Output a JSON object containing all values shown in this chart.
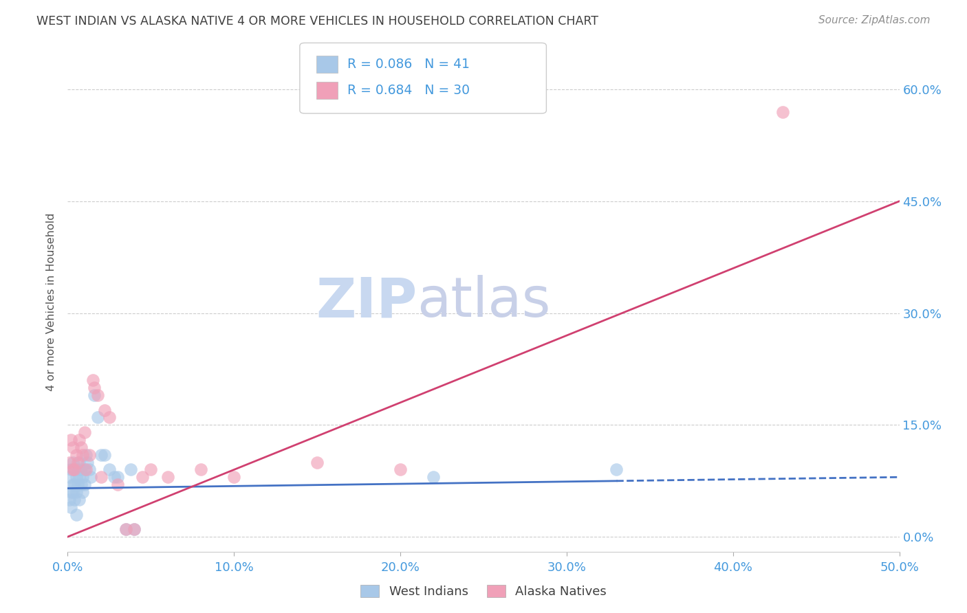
{
  "title": "WEST INDIAN VS ALASKA NATIVE 4 OR MORE VEHICLES IN HOUSEHOLD CORRELATION CHART",
  "source": "Source: ZipAtlas.com",
  "ylabel": "4 or more Vehicles in Household",
  "xlabel_ticks": [
    "0.0%",
    "10.0%",
    "20.0%",
    "30.0%",
    "40.0%",
    "50.0%"
  ],
  "ylabel_ticks": [
    "0.0%",
    "15.0%",
    "30.0%",
    "45.0%",
    "60.0%"
  ],
  "xlim": [
    0.0,
    0.5
  ],
  "ylim": [
    -0.02,
    0.65
  ],
  "west_indian_R": 0.086,
  "west_indian_N": 41,
  "alaska_native_R": 0.684,
  "alaska_native_N": 30,
  "west_indian_color": "#a8c8e8",
  "alaska_native_color": "#f0a0b8",
  "west_indian_line_color": "#4472c4",
  "alaska_native_line_color": "#d04070",
  "title_color": "#404040",
  "source_color": "#909090",
  "axis_label_color": "#4499dd",
  "legend_R_color": "#4499dd",
  "watermark_zip_color": "#c8d8f0",
  "watermark_atlas_color": "#c8d0e8",
  "grid_color": "#cccccc",
  "west_indian_x": [
    0.001,
    0.001,
    0.002,
    0.002,
    0.002,
    0.003,
    0.003,
    0.003,
    0.004,
    0.004,
    0.004,
    0.005,
    0.005,
    0.005,
    0.006,
    0.006,
    0.007,
    0.007,
    0.007,
    0.008,
    0.008,
    0.009,
    0.009,
    0.01,
    0.01,
    0.011,
    0.012,
    0.013,
    0.014,
    0.016,
    0.018,
    0.02,
    0.022,
    0.025,
    0.028,
    0.03,
    0.035,
    0.038,
    0.04,
    0.22,
    0.33
  ],
  "west_indian_y": [
    0.08,
    0.05,
    0.09,
    0.06,
    0.04,
    0.1,
    0.07,
    0.06,
    0.09,
    0.07,
    0.05,
    0.08,
    0.06,
    0.03,
    0.09,
    0.07,
    0.1,
    0.08,
    0.05,
    0.09,
    0.07,
    0.08,
    0.06,
    0.09,
    0.07,
    0.11,
    0.1,
    0.09,
    0.08,
    0.19,
    0.16,
    0.11,
    0.11,
    0.09,
    0.08,
    0.08,
    0.01,
    0.09,
    0.01,
    0.08,
    0.09
  ],
  "alaska_native_x": [
    0.001,
    0.002,
    0.003,
    0.003,
    0.004,
    0.005,
    0.006,
    0.007,
    0.008,
    0.009,
    0.01,
    0.011,
    0.013,
    0.015,
    0.016,
    0.018,
    0.02,
    0.022,
    0.025,
    0.03,
    0.035,
    0.04,
    0.045,
    0.05,
    0.06,
    0.08,
    0.1,
    0.15,
    0.2,
    0.43
  ],
  "alaska_native_y": [
    0.1,
    0.13,
    0.09,
    0.12,
    0.09,
    0.11,
    0.1,
    0.13,
    0.12,
    0.11,
    0.14,
    0.09,
    0.11,
    0.21,
    0.2,
    0.19,
    0.08,
    0.17,
    0.16,
    0.07,
    0.01,
    0.01,
    0.08,
    0.09,
    0.08,
    0.09,
    0.08,
    0.1,
    0.09,
    0.57
  ],
  "wi_line_x0": 0.0,
  "wi_line_x1": 0.5,
  "wi_line_y0": 0.065,
  "wi_line_y1": 0.08,
  "wi_line_solid_end": 0.33,
  "an_line_x0": 0.0,
  "an_line_x1": 0.5,
  "an_line_y0": 0.0,
  "an_line_y1": 0.45
}
